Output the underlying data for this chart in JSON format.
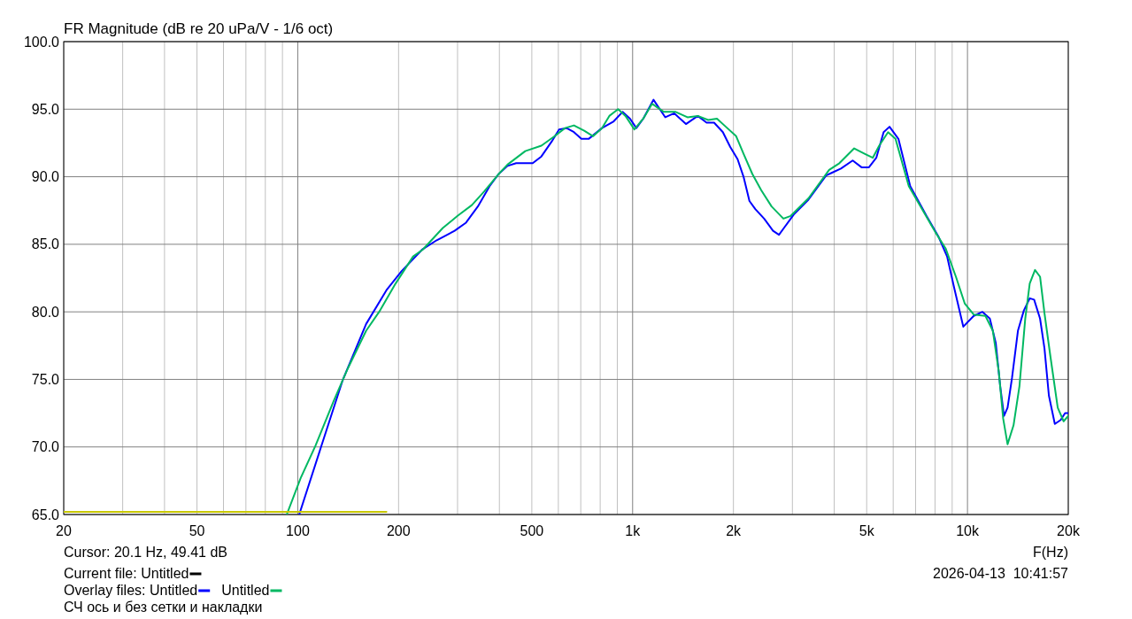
{
  "chart_data": {
    "type": "line",
    "title": "FR Magnitude (dB re 20 uPa/V - 1/6 oct)",
    "xlabel": "F(Hz)",
    "log": "x",
    "xlim": [
      20,
      20000
    ],
    "xticks": [
      20,
      {
        "value": 30,
        "label": null
      },
      {
        "value": 40,
        "label": null
      },
      50,
      {
        "value": 60,
        "label": null
      },
      {
        "value": 70,
        "label": null
      },
      {
        "value": 80,
        "label": null
      },
      {
        "value": 90,
        "label": null
      },
      100,
      200,
      {
        "value": 300,
        "label": null
      },
      {
        "value": 400,
        "label": null
      },
      500,
      {
        "value": 600,
        "label": null
      },
      {
        "value": 700,
        "label": null
      },
      {
        "value": 800,
        "label": null
      },
      {
        "value": 900,
        "label": null
      },
      {
        "value": 1000,
        "label": "1k"
      },
      {
        "value": 2000,
        "label": "2k"
      },
      {
        "value": 3000,
        "label": null
      },
      {
        "value": 4000,
        "label": null
      },
      {
        "value": 5000,
        "label": "5k"
      },
      {
        "value": 6000,
        "label": null
      },
      {
        "value": 7000,
        "label": null
      },
      {
        "value": 8000,
        "label": null
      },
      {
        "value": 9000,
        "label": null
      },
      {
        "value": 10000,
        "label": "10k"
      },
      {
        "value": 20000,
        "label": "20k"
      }
    ],
    "ylim": [
      65,
      100
    ],
    "yticks": [
      {
        "value": 65,
        "label": "65.0"
      },
      {
        "value": 70,
        "label": "70.0"
      },
      {
        "value": 75,
        "label": "75.0"
      },
      {
        "value": 80,
        "label": "80.0"
      },
      {
        "value": 85,
        "label": "85.0"
      },
      {
        "value": 90,
        "label": "90.0"
      },
      {
        "value": 95,
        "label": "95.0"
      },
      {
        "value": 100,
        "label": "100.0"
      }
    ],
    "grid": true,
    "legend": "bottom left",
    "annotations": [
      "Cursor: 20.1 Hz, 49.41 dB",
      "Current file:",
      "Overlay files:",
      "СЧ ось и без сетки и накладки",
      "2026-04-13  10:41:57"
    ],
    "series": [
      {
        "name": "Untitled",
        "color": "#000000"
      },
      {
        "name": "Untitled",
        "color": "#0000ff",
        "x": [
          101,
          117,
          136,
          160,
          184,
          204,
          235,
          260,
          294,
          318,
          345,
          374,
          398,
          423,
          449,
          503,
          534,
          573,
          603,
          635,
          668,
          703,
          739,
          810,
          878,
          933,
          982,
          1026,
          1076,
          1154,
          1252,
          1331,
          1443,
          1565,
          1663,
          1751,
          1860,
          1957,
          2058,
          2144,
          2233,
          2325,
          2470,
          2626,
          2736,
          2849,
          3027,
          3350,
          3784,
          3941,
          4188,
          4541,
          4826,
          5080,
          5342,
          5618,
          5851,
          6220,
          6746,
          7544,
          8180,
          8692,
          9142,
          9718,
          10436,
          11088,
          11662,
          12148,
          12524,
          12856,
          13174,
          13582,
          14148,
          14736,
          15344,
          15814,
          16472,
          16980,
          17506,
          18234,
          18980,
          19566,
          20000
        ],
        "values": [
          65.0,
          69.9,
          74.9,
          79.1,
          81.6,
          83.0,
          84.6,
          85.3,
          86.0,
          86.6,
          87.8,
          89.3,
          90.2,
          90.8,
          91.0,
          91.0,
          91.5,
          92.6,
          93.5,
          93.6,
          93.3,
          92.8,
          92.8,
          93.6,
          94.1,
          94.8,
          94.3,
          93.6,
          94.3,
          95.7,
          94.4,
          94.7,
          93.9,
          94.5,
          94.0,
          94.0,
          93.3,
          92.2,
          91.3,
          90.0,
          88.2,
          87.6,
          86.9,
          86.0,
          85.7,
          86.3,
          87.2,
          88.3,
          90.1,
          90.3,
          90.6,
          91.2,
          90.7,
          90.7,
          91.4,
          93.3,
          93.7,
          92.8,
          89.3,
          87.1,
          85.6,
          84.1,
          81.7,
          78.9,
          79.7,
          80.0,
          79.5,
          77.7,
          74.5,
          72.3,
          72.9,
          75.1,
          78.6,
          80.1,
          81.0,
          80.9,
          79.5,
          77.3,
          73.8,
          71.7,
          72.0,
          72.5,
          72.5
        ]
      },
      {
        "name": "Untitled",
        "color": "#00b862",
        "x": [
          92.7,
          102,
          113,
          128,
          141,
          160,
          175,
          196,
          221,
          236,
          271,
          300,
          331,
          360,
          398,
          423,
          478,
          534,
          585,
          628,
          668,
          717,
          762,
          810,
          852,
          905,
          952,
          1012,
          1076,
          1143,
          1239,
          1344,
          1458,
          1565,
          1681,
          1786,
          1898,
          2038,
          2144,
          2278,
          2421,
          2600,
          2820,
          2966,
          3350,
          3862,
          4144,
          4588,
          4928,
          5214,
          5450,
          5792,
          6096,
          6680,
          7244,
          8016,
          8602,
          9236,
          9820,
          10436,
          11314,
          11906,
          12400,
          12782,
          13174,
          13726,
          14296,
          14878,
          15344,
          15910,
          16472,
          16980,
          17688,
          18602,
          19370,
          20000
        ],
        "values": [
          65.0,
          67.7,
          70.1,
          73.4,
          75.8,
          78.6,
          80.0,
          82.1,
          84.1,
          84.6,
          86.2,
          87.1,
          87.9,
          88.9,
          90.2,
          90.9,
          91.9,
          92.3,
          93.0,
          93.6,
          93.8,
          93.4,
          93.0,
          93.6,
          94.5,
          95.0,
          94.5,
          93.5,
          94.3,
          95.4,
          94.8,
          94.8,
          94.4,
          94.5,
          94.2,
          94.3,
          93.7,
          93.0,
          91.7,
          90.2,
          89.0,
          87.8,
          86.9,
          87.1,
          88.4,
          90.5,
          91.0,
          92.1,
          91.7,
          91.4,
          92.3,
          93.3,
          92.8,
          89.3,
          87.8,
          85.9,
          84.7,
          82.6,
          80.6,
          79.8,
          79.7,
          78.6,
          75.6,
          72.1,
          70.2,
          71.6,
          74.5,
          79.5,
          82.1,
          83.1,
          82.6,
          79.9,
          76.7,
          72.9,
          71.9,
          72.3
        ]
      },
      {
        "color": "#c8c800",
        "x": [
          20,
          184
        ],
        "values": [
          65.2,
          65.2
        ]
      }
    ]
  }
}
